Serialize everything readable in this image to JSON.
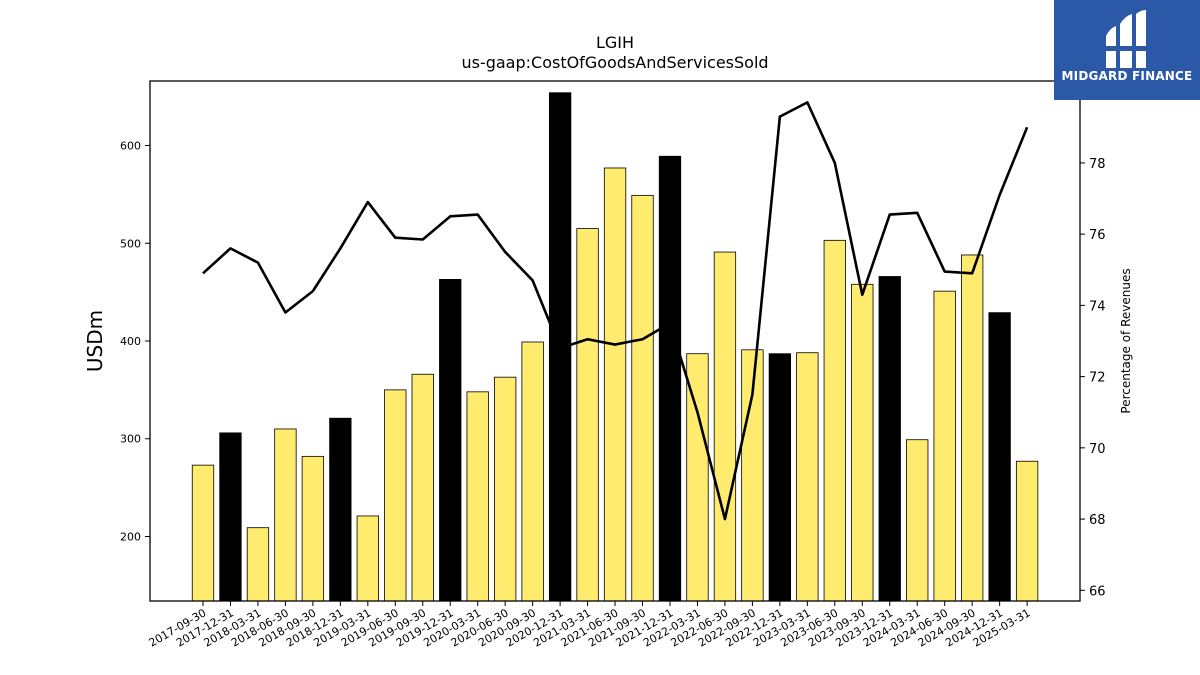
{
  "logo": {
    "text": "MIDGARD FINANCE",
    "background": "#2b59a8"
  },
  "colors": {
    "bar_regular": "#ffec6e",
    "bar_highlight": "#000000",
    "line": "#000000"
  },
  "chart_data": {
    "type": "bar",
    "title": "LGIH",
    "subtitle": "us-gaap:CostOfGoodsAndServicesSold",
    "ylabel": "USDm",
    "y2label": "Percentage of Revenues",
    "ylim": [
      134,
      666
    ],
    "y2lim": [
      65.7,
      80.3
    ],
    "yticks": [
      200,
      300,
      400,
      500,
      600
    ],
    "y2ticks": [
      66,
      68,
      70,
      72,
      74,
      76,
      78
    ],
    "categories": [
      "2017-09-30",
      "2017-12-31",
      "2018-03-31",
      "2018-06-30",
      "2018-09-30",
      "2018-12-31",
      "2019-03-31",
      "2019-06-30",
      "2019-09-30",
      "2019-12-31",
      "2020-03-31",
      "2020-06-30",
      "2020-09-30",
      "2020-12-31",
      "2021-03-31",
      "2021-06-30",
      "2021-09-30",
      "2021-12-31",
      "2022-03-31",
      "2022-06-30",
      "2022-09-30",
      "2022-12-31",
      "2023-03-31",
      "2023-06-30",
      "2023-09-30",
      "2023-12-31",
      "2024-03-31",
      "2024-06-30",
      "2024-09-30",
      "2024-12-31",
      "2025-03-31"
    ],
    "series": [
      {
        "type": "bar",
        "values": [
          273,
          306,
          209,
          310,
          282,
          321,
          221,
          350,
          366,
          463,
          348,
          363,
          399,
          654,
          515,
          577,
          549,
          589,
          387,
          491,
          391,
          387,
          388,
          503,
          458,
          466,
          299,
          451,
          488,
          429,
          277
        ],
        "highlight": [
          false,
          true,
          false,
          false,
          false,
          true,
          false,
          false,
          false,
          true,
          false,
          false,
          false,
          true,
          false,
          false,
          false,
          true,
          false,
          false,
          false,
          true,
          false,
          false,
          false,
          true,
          false,
          false,
          false,
          true,
          false
        ]
      },
      {
        "type": "line",
        "axis": "right",
        "values": [
          74.9,
          75.6,
          75.2,
          73.8,
          74.4,
          75.6,
          76.9,
          75.9,
          75.85,
          76.5,
          76.55,
          75.5,
          74.7,
          72.8,
          73.05,
          72.9,
          73.05,
          73.5,
          71.0,
          68.0,
          71.5,
          79.3,
          79.7,
          78.0,
          74.3,
          76.55,
          76.6,
          74.95,
          74.9,
          77.1,
          79.0
        ]
      }
    ]
  }
}
